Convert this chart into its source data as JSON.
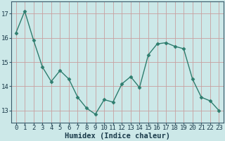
{
  "x": [
    0,
    1,
    2,
    3,
    4,
    5,
    6,
    7,
    8,
    9,
    10,
    11,
    12,
    13,
    14,
    15,
    16,
    17,
    18,
    19,
    20,
    21,
    22,
    23
  ],
  "y": [
    16.2,
    17.1,
    15.9,
    14.8,
    14.2,
    14.65,
    14.3,
    13.55,
    13.1,
    12.85,
    13.45,
    13.35,
    14.1,
    14.4,
    13.95,
    15.3,
    15.75,
    15.8,
    15.65,
    15.55,
    14.3,
    13.55,
    13.4,
    13.0
  ],
  "xlim": [
    -0.5,
    23.5
  ],
  "ylim": [
    12.5,
    17.5
  ],
  "yticks": [
    13,
    14,
    15,
    16,
    17
  ],
  "xticks": [
    0,
    1,
    2,
    3,
    4,
    5,
    6,
    7,
    8,
    9,
    10,
    11,
    12,
    13,
    14,
    15,
    16,
    17,
    18,
    19,
    20,
    21,
    22,
    23
  ],
  "xlabel": "Humidex (Indice chaleur)",
  "line_color": "#2e7d6e",
  "marker": "D",
  "marker_size": 2.5,
  "bg_color": "#cce8e8",
  "vgrid_color": "#c8a0a0",
  "hgrid_color": "#c8a0a0",
  "axis_color": "#3a5a6a",
  "tick_color": "#1a3a4a",
  "label_fontsize": 7.5,
  "tick_fontsize": 6.5
}
